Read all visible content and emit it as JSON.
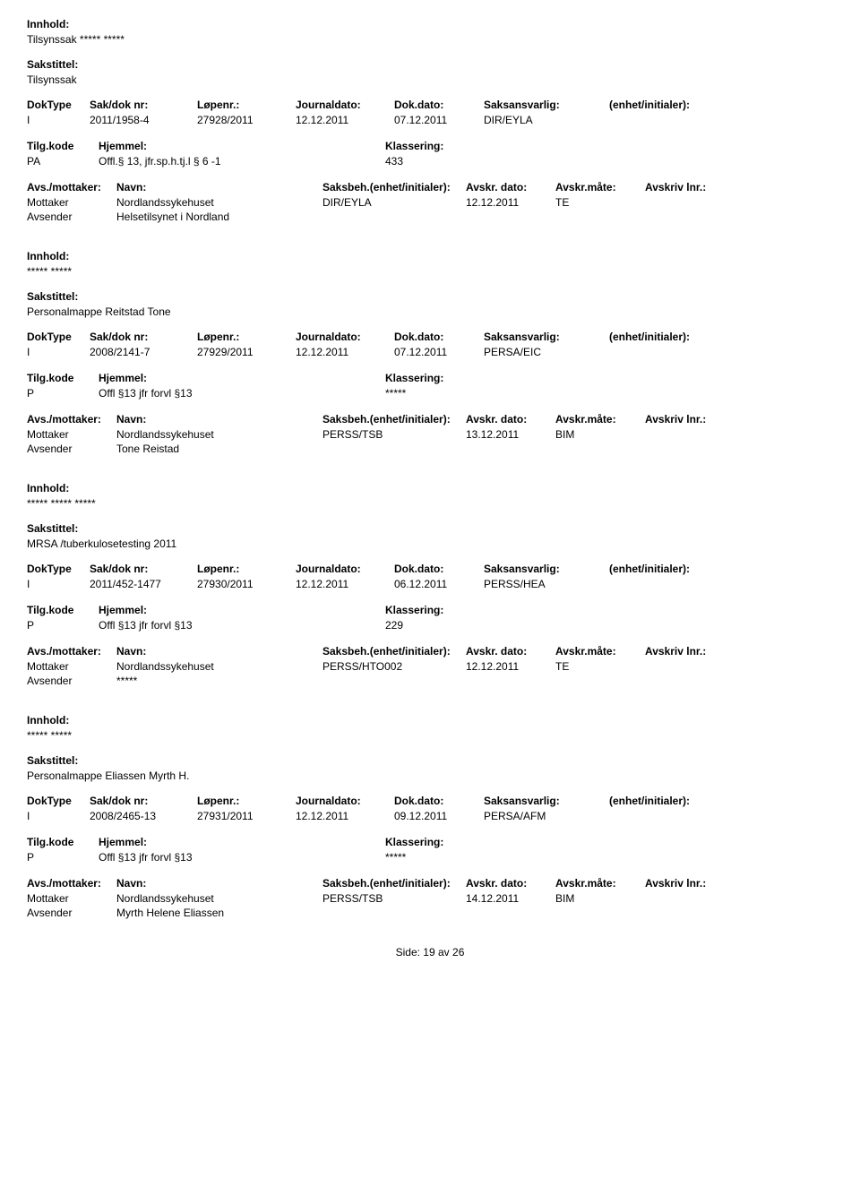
{
  "labels": {
    "innhold": "Innhold:",
    "sakstittel": "Sakstittel:",
    "doktype": "DokType",
    "sakdok": "Sak/dok nr:",
    "lopenr": "Løpenr.:",
    "journaldato": "Journaldato:",
    "dokdato": "Dok.dato:",
    "saksansvarlig": "Saksansvarlig:",
    "enhet": "(enhet/initialer):",
    "tilgkode": "Tilg.kode",
    "hjemmel": "Hjemmel:",
    "klassering": "Klassering:",
    "avsmottaker": "Avs./mottaker:",
    "navn": "Navn:",
    "saksbeh": "Saksbeh.(enhet/initialer):",
    "avskrdato": "Avskr. dato:",
    "avskrmate": "Avskr.måte:",
    "avskrlnr": "Avskriv lnr.:",
    "mottaker": "Mottaker",
    "avsender": "Avsender"
  },
  "footer": {
    "side": "Side:",
    "page": "19",
    "av": "av",
    "total": "26"
  },
  "records": [
    {
      "innhold": "Tilsynssak ***** *****",
      "sakstittel": "Tilsynssak",
      "doktype": "I",
      "sakdok": "2011/1958-4",
      "lopenr": "27928/2011",
      "journaldato": "12.12.2011",
      "dokdato": "07.12.2011",
      "saksansvarlig": "DIR/EYLA",
      "enhet": "",
      "tilgkode": "PA",
      "hjemmel": "Offl.§ 13, jfr.sp.h.tj.l § 6 -1",
      "klassering": "433",
      "parties": [
        {
          "role": "Mottaker",
          "navn": "Nordlandssykehuset",
          "saksbeh": "DIR/EYLA",
          "avdato": "12.12.2011",
          "avmate": "TE",
          "avlnr": ""
        },
        {
          "role": "Avsender",
          "navn": "Helsetilsynet i Nordland",
          "saksbeh": "",
          "avdato": "",
          "avmate": "",
          "avlnr": ""
        }
      ]
    },
    {
      "innhold": "***** *****",
      "sakstittel": "Personalmappe Reitstad Tone",
      "doktype": "I",
      "sakdok": "2008/2141-7",
      "lopenr": "27929/2011",
      "journaldato": "12.12.2011",
      "dokdato": "07.12.2011",
      "saksansvarlig": "PERSA/EIC",
      "enhet": "",
      "tilgkode": "P",
      "hjemmel": "Offl §13 jfr forvl §13",
      "klassering": "*****",
      "parties": [
        {
          "role": "Mottaker",
          "navn": "Nordlandssykehuset",
          "saksbeh": "PERSS/TSB",
          "avdato": "13.12.2011",
          "avmate": "BIM",
          "avlnr": ""
        },
        {
          "role": "Avsender",
          "navn": "Tone Reistad",
          "saksbeh": "",
          "avdato": "",
          "avmate": "",
          "avlnr": ""
        }
      ]
    },
    {
      "innhold": "***** ***** *****",
      "sakstittel": "MRSA /tuberkulosetesting 2011",
      "doktype": "I",
      "sakdok": "2011/452-1477",
      "lopenr": "27930/2011",
      "journaldato": "12.12.2011",
      "dokdato": "06.12.2011",
      "saksansvarlig": "PERSS/HEA",
      "enhet": "",
      "tilgkode": "P",
      "hjemmel": "Offl §13 jfr forvl §13",
      "klassering": "229",
      "parties": [
        {
          "role": "Mottaker",
          "navn": "Nordlandssykehuset",
          "saksbeh": "PERSS/HTO002",
          "avdato": "12.12.2011",
          "avmate": "TE",
          "avlnr": ""
        },
        {
          "role": "Avsender",
          "navn": "*****",
          "saksbeh": "",
          "avdato": "",
          "avmate": "",
          "avlnr": ""
        }
      ]
    },
    {
      "innhold": "***** *****",
      "sakstittel": "Personalmappe Eliassen Myrth H.",
      "doktype": "I",
      "sakdok": "2008/2465-13",
      "lopenr": "27931/2011",
      "journaldato": "12.12.2011",
      "dokdato": "09.12.2011",
      "saksansvarlig": "PERSA/AFM",
      "enhet": "",
      "tilgkode": "P",
      "hjemmel": "Offl §13 jfr forvl §13",
      "klassering": "*****",
      "parties": [
        {
          "role": "Mottaker",
          "navn": "Nordlandssykehuset",
          "saksbeh": "PERSS/TSB",
          "avdato": "14.12.2011",
          "avmate": "BIM",
          "avlnr": ""
        },
        {
          "role": "Avsender",
          "navn": "Myrth Helene Eliassen",
          "saksbeh": "",
          "avdato": "",
          "avmate": "",
          "avlnr": ""
        }
      ]
    }
  ]
}
